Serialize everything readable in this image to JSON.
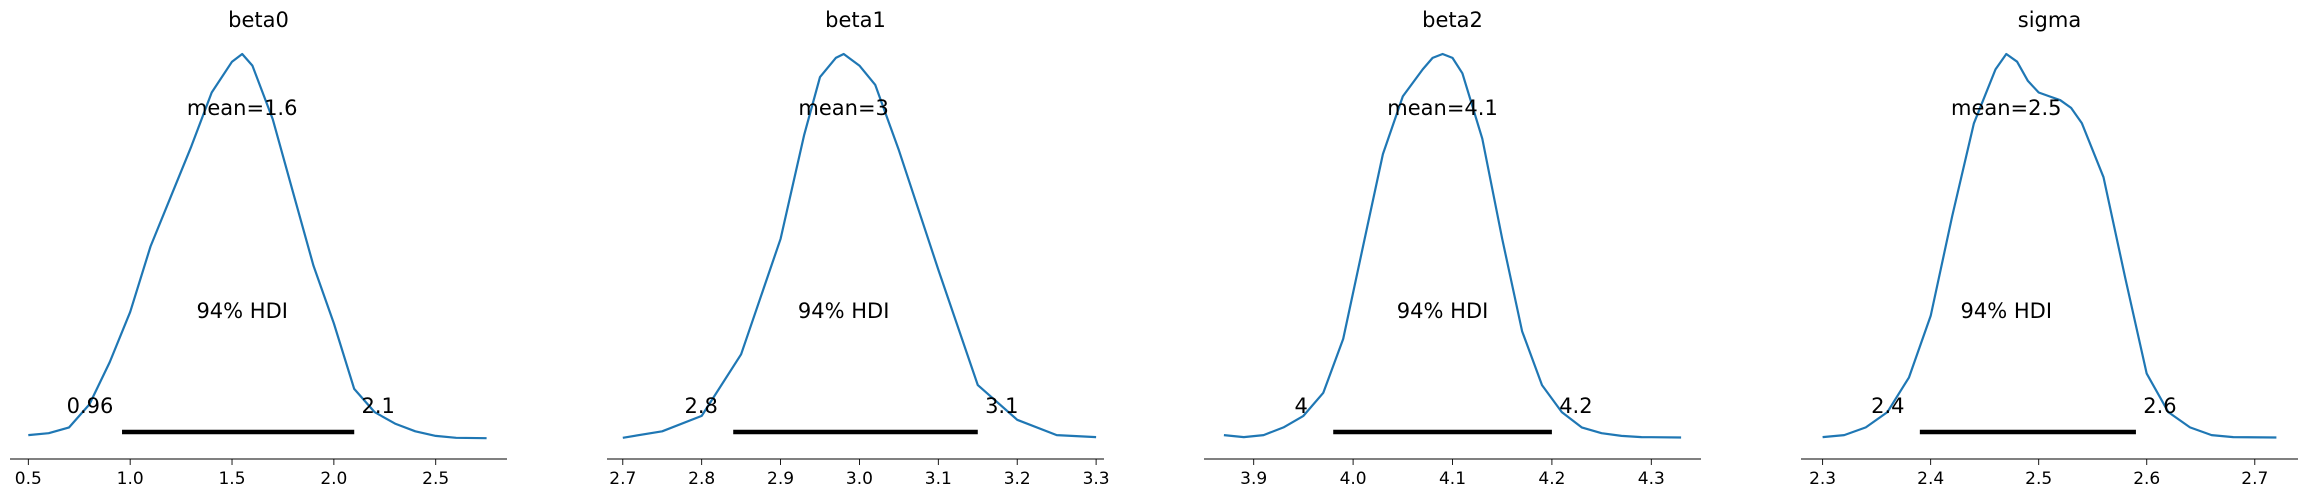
{
  "chart_data": [
    {
      "type": "line",
      "title": "beta0",
      "mean_label": "mean=1.6",
      "hdi_label": "94% HDI",
      "hdi": [
        0.96,
        2.1
      ],
      "hdi_low_label": "0.96",
      "hdi_high_label": "2.1",
      "xlim": [
        0.41,
        2.85
      ],
      "ticks": [
        0.5,
        1.0,
        1.5,
        2.0,
        2.5
      ],
      "tick_labels": [
        "0.5",
        "1.0",
        "1.5",
        "2.0",
        "2.5"
      ],
      "density_x": [
        0.5,
        0.6,
        0.7,
        0.8,
        0.9,
        1.0,
        1.1,
        1.2,
        1.3,
        1.4,
        1.5,
        1.55,
        1.6,
        1.7,
        1.8,
        1.9,
        2.0,
        2.1,
        2.2,
        2.3,
        2.4,
        2.5,
        2.6,
        2.75
      ],
      "density_y": [
        0.01,
        0.015,
        0.03,
        0.09,
        0.2,
        0.33,
        0.5,
        0.63,
        0.76,
        0.9,
        0.98,
        1.0,
        0.97,
        0.83,
        0.64,
        0.45,
        0.3,
        0.13,
        0.07,
        0.04,
        0.02,
        0.008,
        0.003,
        0.002
      ]
    },
    {
      "type": "line",
      "title": "beta1",
      "mean_label": "mean=3",
      "hdi_label": "94% HDI",
      "hdi": [
        2.84,
        3.15
      ],
      "hdi_low_label": "2.8",
      "hdi_high_label": "3.1",
      "xlim": [
        2.68,
        3.31
      ],
      "ticks": [
        2.7,
        2.8,
        2.9,
        3.0,
        3.1,
        3.2,
        3.3
      ],
      "tick_labels": [
        "2.7",
        "2.8",
        "2.9",
        "3.0",
        "3.1",
        "3.2",
        "3.3"
      ],
      "density_x": [
        2.7,
        2.75,
        2.8,
        2.85,
        2.9,
        2.93,
        2.95,
        2.97,
        2.98,
        3.0,
        3.02,
        3.05,
        3.1,
        3.15,
        3.2,
        3.25,
        3.3
      ],
      "density_y": [
        0.003,
        0.02,
        0.06,
        0.22,
        0.52,
        0.79,
        0.94,
        0.99,
        1.0,
        0.97,
        0.92,
        0.75,
        0.44,
        0.14,
        0.05,
        0.01,
        0.005
      ]
    },
    {
      "type": "line",
      "title": "beta2",
      "mean_label": "mean=4.1",
      "hdi_label": "94% HDI",
      "hdi": [
        3.98,
        4.2
      ],
      "hdi_low_label": "4",
      "hdi_high_label": "4.2",
      "xlim": [
        3.85,
        4.35
      ],
      "ticks": [
        3.9,
        4.0,
        4.1,
        4.2,
        4.3
      ],
      "tick_labels": [
        "3.9",
        "4.0",
        "4.1",
        "4.2",
        "4.3"
      ],
      "density_x": [
        3.87,
        3.89,
        3.91,
        3.93,
        3.95,
        3.97,
        3.99,
        4.01,
        4.03,
        4.05,
        4.07,
        4.08,
        4.09,
        4.1,
        4.11,
        4.13,
        4.15,
        4.17,
        4.19,
        4.21,
        4.23,
        4.25,
        4.27,
        4.29,
        4.33
      ],
      "density_y": [
        0.01,
        0.005,
        0.01,
        0.03,
        0.06,
        0.12,
        0.26,
        0.5,
        0.74,
        0.89,
        0.96,
        0.99,
        1.0,
        0.99,
        0.95,
        0.78,
        0.52,
        0.28,
        0.14,
        0.07,
        0.03,
        0.015,
        0.008,
        0.005,
        0.004
      ]
    },
    {
      "type": "line",
      "title": "sigma",
      "mean_label": "mean=2.5",
      "hdi_label": "94% HDI",
      "hdi": [
        2.39,
        2.59
      ],
      "hdi_low_label": "2.4",
      "hdi_high_label": "2.6",
      "xlim": [
        2.28,
        2.74
      ],
      "ticks": [
        2.3,
        2.4,
        2.5,
        2.6,
        2.7
      ],
      "tick_labels": [
        "2.3",
        "2.4",
        "2.5",
        "2.6",
        "2.7"
      ],
      "density_x": [
        2.3,
        2.32,
        2.34,
        2.36,
        2.38,
        2.4,
        2.42,
        2.44,
        2.46,
        2.47,
        2.48,
        2.49,
        2.5,
        2.51,
        2.52,
        2.53,
        2.54,
        2.56,
        2.58,
        2.6,
        2.62,
        2.64,
        2.66,
        2.68,
        2.72
      ],
      "density_y": [
        0.005,
        0.01,
        0.03,
        0.07,
        0.16,
        0.32,
        0.58,
        0.82,
        0.96,
        1.0,
        0.98,
        0.93,
        0.9,
        0.89,
        0.88,
        0.86,
        0.82,
        0.68,
        0.42,
        0.17,
        0.07,
        0.03,
        0.01,
        0.005,
        0.004
      ]
    }
  ]
}
